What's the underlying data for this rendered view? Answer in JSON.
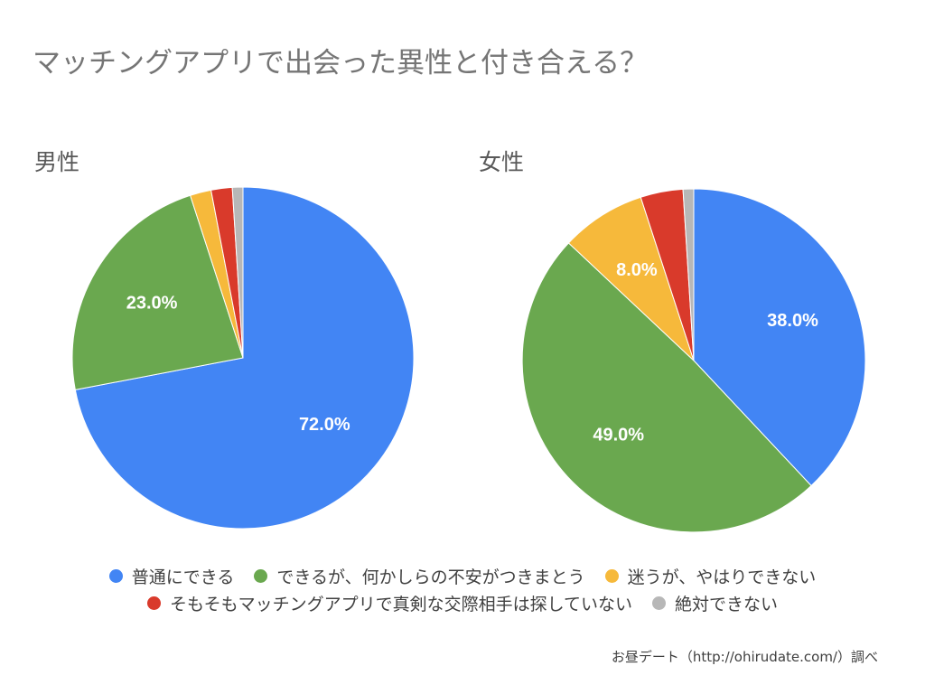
{
  "title": "マッチングアプリで出会った異性と付き合える？",
  "source": "お昼デート（http://ohirudate.com/）調べ",
  "legend": [
    {
      "label": "普通にできる",
      "color": "#4285f4"
    },
    {
      "label": "できるが、何かしらの不安がつきまとう",
      "color": "#6aa84f"
    },
    {
      "label": "迷うが、やはりできない",
      "color": "#f6b93b"
    },
    {
      "label": "そもそもマッチングアプリで真剣な交際相手は探していない",
      "color": "#d93a2b"
    },
    {
      "label": "絶対できない",
      "color": "#b7b7b7"
    }
  ],
  "chart_data": [
    {
      "type": "pie",
      "title": "男性",
      "categories": [
        "普通にできる",
        "できるが、何かしらの不安がつきまとう",
        "迷うが、やはりできない",
        "そもそもマッチングアプリで真剣な交際相手は探していない",
        "絶対できない"
      ],
      "values": [
        72.0,
        23.0,
        2.0,
        2.0,
        1.0
      ],
      "labels": [
        "72.0%",
        "23.0%",
        "",
        "",
        ""
      ],
      "colors": [
        "#4285f4",
        "#6aa84f",
        "#f6b93b",
        "#d93a2b",
        "#b7b7b7"
      ]
    },
    {
      "type": "pie",
      "title": "女性",
      "categories": [
        "普通にできる",
        "できるが、何かしらの不安がつきまとう",
        "迷うが、やはりできない",
        "そもそもマッチングアプリで真剣な交際相手は探していない",
        "絶対できない"
      ],
      "values": [
        38.0,
        49.0,
        8.0,
        4.0,
        1.0
      ],
      "labels": [
        "38.0%",
        "49.0%",
        "8.0%",
        "",
        ""
      ],
      "colors": [
        "#4285f4",
        "#6aa84f",
        "#f6b93b",
        "#d93a2b",
        "#b7b7b7"
      ]
    }
  ]
}
